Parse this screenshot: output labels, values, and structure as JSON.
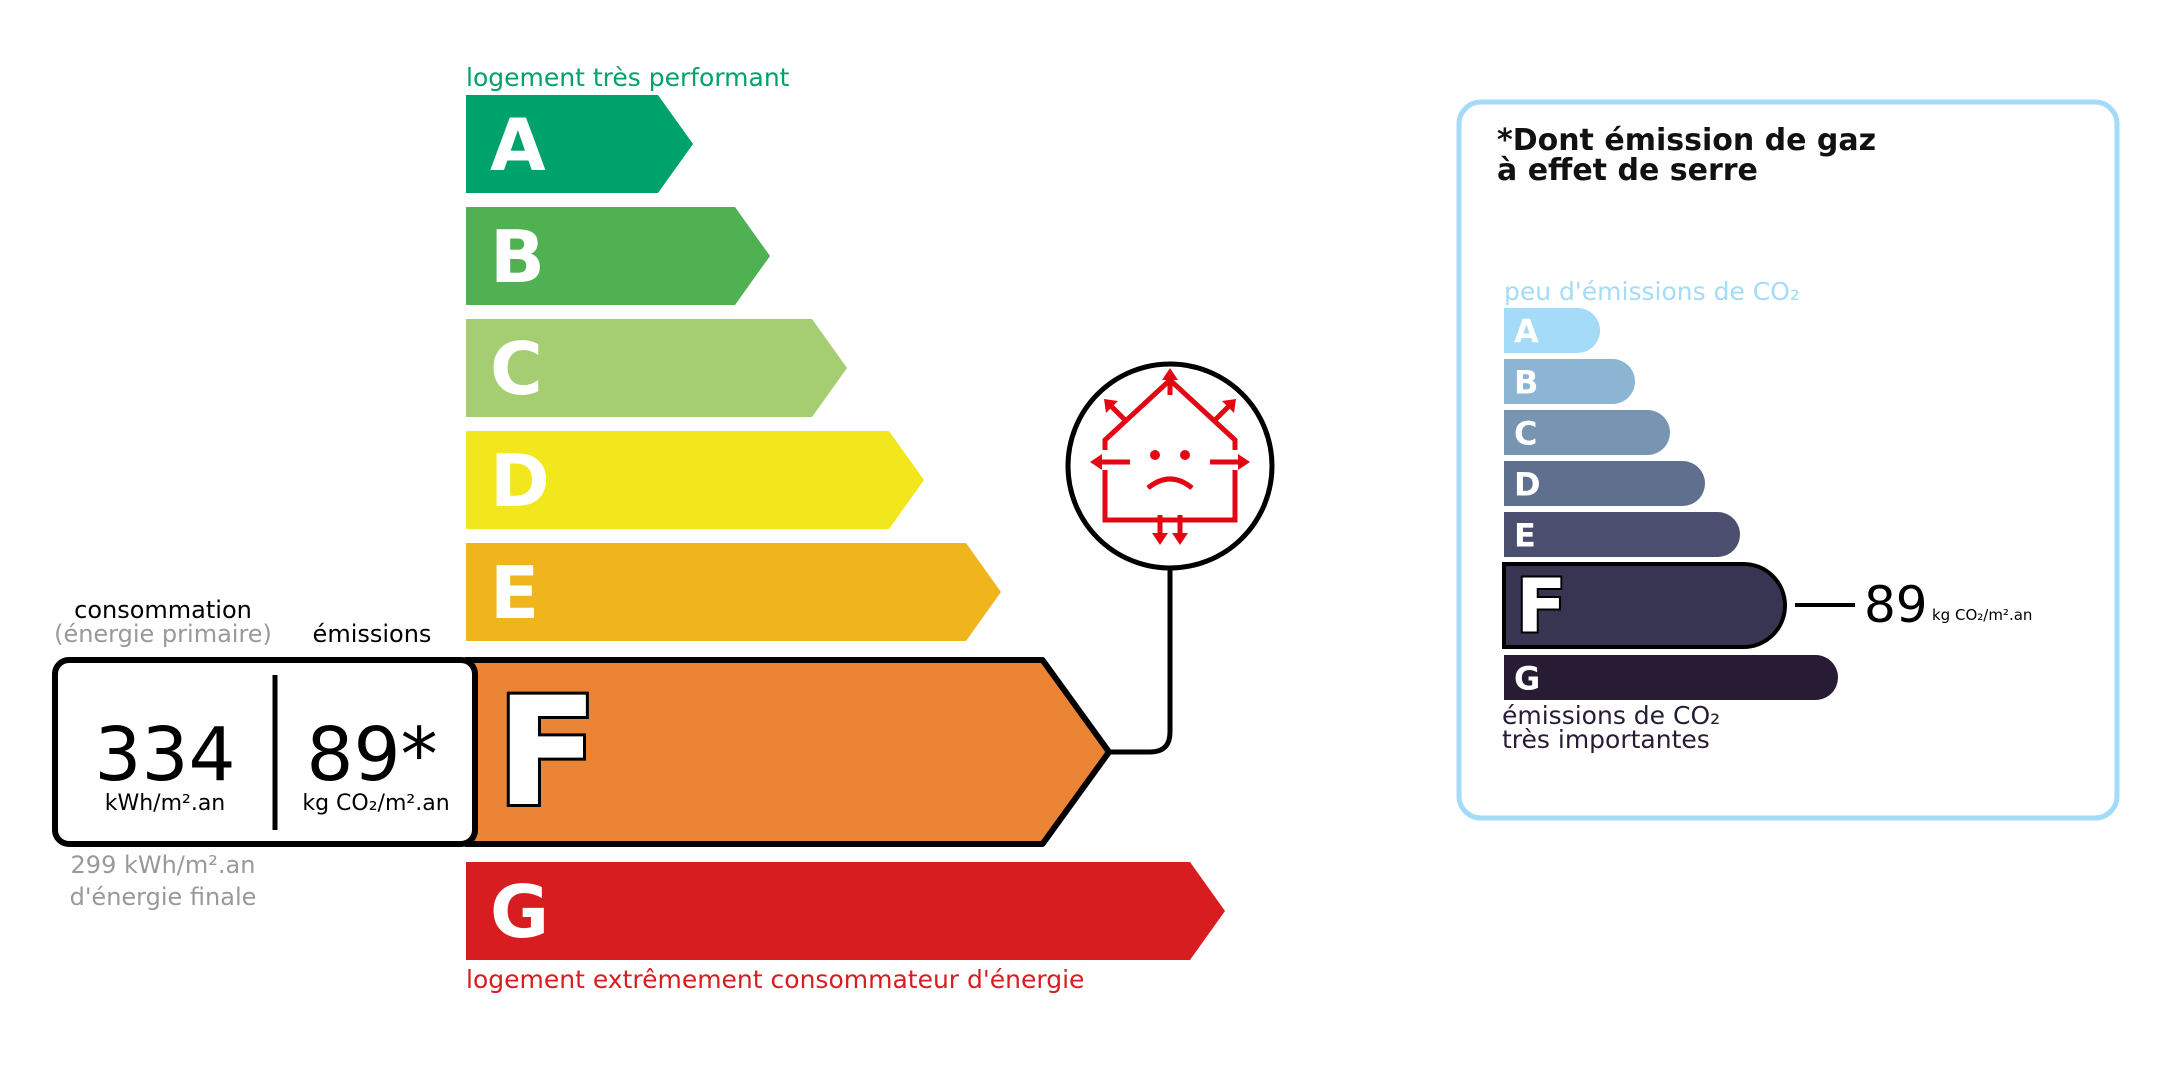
{
  "energy": {
    "top_label": "logement très performant",
    "bottom_label": "logement extrêmement consommateur d'énergie",
    "classes": [
      {
        "letter": "A",
        "color": "#00a26b"
      },
      {
        "letter": "B",
        "color": "#50b153"
      },
      {
        "letter": "C",
        "color": "#a5cd71"
      },
      {
        "letter": "D",
        "color": "#f2e61c"
      },
      {
        "letter": "E",
        "color": "#f0b41c"
      },
      {
        "letter": "F",
        "color": "#eb8434"
      },
      {
        "letter": "G",
        "color": "#d71d20"
      }
    ],
    "current_class": "F",
    "consumption_header": "consommation",
    "consumption_subheader": "(énergie primaire)",
    "emissions_header": "émissions",
    "consumption_value": "334",
    "consumption_unit": "kWh/m².an",
    "emissions_value": "89*",
    "emissions_unit": "kg CO₂/m².an",
    "final_energy_line1": "299 kWh/m².an",
    "final_energy_line2": "d'énergie finale",
    "icon": "house-poor-insulation-icon"
  },
  "ghg": {
    "title_line1": "*Dont émission de gaz",
    "title_line2": "à effet de serre",
    "top_label": "peu d'émissions de CO₂",
    "bottom_label_line1": "émissions de CO₂",
    "bottom_label_line2": "très importantes",
    "classes": [
      {
        "letter": "A",
        "color": "#a4dbf8"
      },
      {
        "letter": "B",
        "color": "#8cb4d3"
      },
      {
        "letter": "C",
        "color": "#7794b1"
      },
      {
        "letter": "D",
        "color": "#5f6f8e"
      },
      {
        "letter": "E",
        "color": "#4b4e6e"
      },
      {
        "letter": "F",
        "color": "#383552"
      },
      {
        "letter": "G",
        "color": "#281b34"
      }
    ],
    "current_class": "F",
    "value": "89",
    "unit": "kg CO₂/m².an",
    "border_color": "#a4dbf8"
  }
}
